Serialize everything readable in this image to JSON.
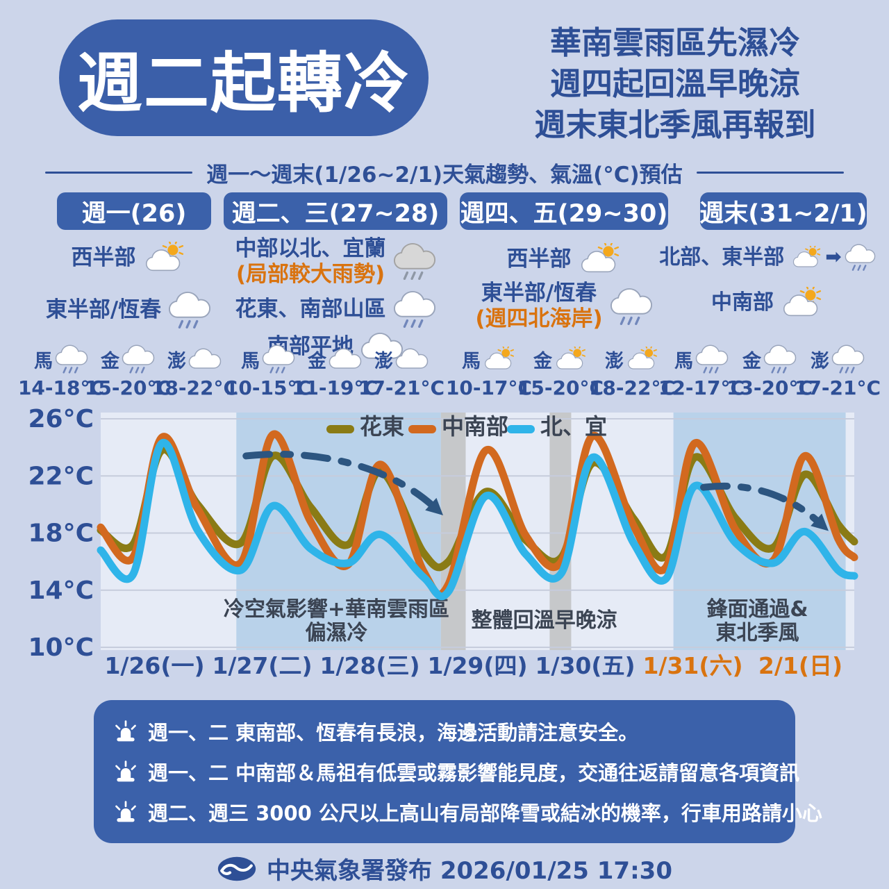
{
  "colors": {
    "page_bg": "#ccd5ea",
    "primary_blue": "#3b61aa",
    "dark_blue_text": "#2e4f96",
    "orange_accent": "#d9730f",
    "chart_bg": "#e6ebf6",
    "band_blue": "#b9d2ea",
    "band_gray": "#c6c8ca",
    "gridline": "#c6ccdc",
    "annotation": "#3b4453",
    "arrow": "#2c5580",
    "sun": "#f4a81d",
    "rain_drop": "#7187bb"
  },
  "header": {
    "title": "週二起轉冷",
    "subtitle_lines": [
      "華南雲雨區先濕冷",
      "週四起回溫早晚涼",
      "週末東北季風再報到"
    ]
  },
  "section": {
    "title": "週一～週末(1/26~2/1)天氣趨勢、氣溫(°C)預估"
  },
  "forecast_columns": [
    {
      "header": "週一(26)",
      "rows": [
        {
          "label": "西半部",
          "icon": "partly-sunny"
        },
        {
          "label": "東半部/恆春",
          "icon": "cloud-rain"
        }
      ],
      "islands": [
        {
          "name": "馬",
          "icon": "cloud-rain",
          "temp": "14-18°C"
        },
        {
          "name": "金",
          "icon": "cloud-rain",
          "temp": "15-20°C"
        },
        {
          "name": "澎",
          "icon": "cloudy",
          "temp": "18-22°C"
        }
      ]
    },
    {
      "header": "週二、三(27~28)",
      "rows": [
        {
          "label": "中部以北、宜蘭",
          "sublabel": "(局部較大雨勢)",
          "icon": "cloud-rain-gray"
        },
        {
          "label": "花東、南部山區",
          "icon": "cloud-rain"
        },
        {
          "label": "南部平地",
          "icon": "cloudy"
        }
      ],
      "islands": [
        {
          "name": "馬",
          "icon": "cloud-rain",
          "temp": "10-15°C"
        },
        {
          "name": "金",
          "icon": "cloudy",
          "temp": "11-19°C"
        },
        {
          "name": "澎",
          "icon": "cloudy",
          "temp": "17-21°C"
        }
      ]
    },
    {
      "header": "週四、五(29~30)",
      "rows": [
        {
          "label": "西半部",
          "icon": "partly-sunny"
        },
        {
          "label": "東半部/恆春",
          "sublabel": "(週四北海岸)",
          "icon": "cloud-rain"
        }
      ],
      "islands": [
        {
          "name": "馬",
          "icon": "partly-sunny",
          "temp": "10-17°C"
        },
        {
          "name": "金",
          "icon": "partly-sunny",
          "temp": "15-20°C"
        },
        {
          "name": "澎",
          "icon": "partly-sunny",
          "temp": "18-22°C"
        }
      ]
    },
    {
      "header": "週末(31~2/1)",
      "rows": [
        {
          "label": "北部、東半部",
          "icon": "partly-sunny-to-rain"
        },
        {
          "label": "中南部",
          "icon": "partly-sunny"
        }
      ],
      "islands": [
        {
          "name": "馬",
          "icon": "cloud-rain",
          "temp": "12-17°C"
        },
        {
          "name": "金",
          "icon": "cloud-rain",
          "temp": "13-20°C"
        },
        {
          "name": "澎",
          "icon": "cloud-rain",
          "temp": "17-21°C"
        }
      ]
    }
  ],
  "chart_data": {
    "type": "line",
    "title": "週一～週末(1/26~2/1)天氣趨勢、氣溫(°C)預估",
    "xlabel": "",
    "ylabel": "氣溫(°C)",
    "ylim": [
      10,
      26
    ],
    "grid": true,
    "legend_position": "top",
    "yticks": [
      {
        "t": 26,
        "label": "26°C"
      },
      {
        "t": 22,
        "label": "22°C"
      },
      {
        "t": 18,
        "label": "18°C"
      },
      {
        "t": 14,
        "label": "14°C"
      },
      {
        "t": 10,
        "label": "10°C"
      }
    ],
    "x_labels": [
      {
        "label": "1/26(一)",
        "weekend": false
      },
      {
        "label": "1/27(二)",
        "weekend": false
      },
      {
        "label": "1/28(三)",
        "weekend": false
      },
      {
        "label": "1/29(四)",
        "weekend": false
      },
      {
        "label": "1/30(五)",
        "weekend": false
      },
      {
        "label": "1/31(六)",
        "weekend": true
      },
      {
        "label": "2/1(日)",
        "weekend": true
      }
    ],
    "series": [
      {
        "name": "花東",
        "color": "#8a7b15",
        "points": [
          [
            0,
            18.2
          ],
          [
            0.3,
            17.2
          ],
          [
            0.57,
            23.8
          ],
          [
            0.9,
            20.0
          ],
          [
            1.3,
            17.3
          ],
          [
            1.6,
            23.4
          ],
          [
            1.95,
            19.8
          ],
          [
            2.3,
            17.2
          ],
          [
            2.6,
            22.3
          ],
          [
            3.0,
            16.6
          ],
          [
            3.23,
            16.0
          ],
          [
            3.58,
            20.9
          ],
          [
            3.95,
            17.5
          ],
          [
            4.28,
            16.3
          ],
          [
            4.57,
            22.9
          ],
          [
            4.95,
            19.0
          ],
          [
            5.25,
            16.4
          ],
          [
            5.52,
            23.3
          ],
          [
            5.9,
            19.0
          ],
          [
            6.25,
            17.0
          ],
          [
            6.54,
            22.1
          ],
          [
            6.85,
            18.6
          ],
          [
            7,
            17.4
          ]
        ]
      },
      {
        "name": "中南部",
        "color": "#d2691f",
        "points": [
          [
            0,
            18.4
          ],
          [
            0.3,
            16.3
          ],
          [
            0.57,
            24.7
          ],
          [
            0.9,
            19.7
          ],
          [
            1.3,
            15.9
          ],
          [
            1.6,
            24.9
          ],
          [
            1.95,
            18.8
          ],
          [
            2.3,
            15.8
          ],
          [
            2.6,
            22.8
          ],
          [
            3.0,
            15.3
          ],
          [
            3.23,
            14.4
          ],
          [
            3.58,
            23.8
          ],
          [
            3.95,
            17.8
          ],
          [
            4.28,
            16.0
          ],
          [
            4.57,
            24.8
          ],
          [
            4.95,
            18.5
          ],
          [
            5.25,
            15.6
          ],
          [
            5.52,
            24.3
          ],
          [
            5.9,
            18.2
          ],
          [
            6.25,
            16.1
          ],
          [
            6.54,
            23.4
          ],
          [
            6.85,
            17.6
          ],
          [
            7,
            16.3
          ]
        ]
      },
      {
        "name": "北、宜",
        "color": "#2fb4e9",
        "points": [
          [
            0,
            16.8
          ],
          [
            0.3,
            15.1
          ],
          [
            0.57,
            24.3
          ],
          [
            0.9,
            18.2
          ],
          [
            1.3,
            15.4
          ],
          [
            1.6,
            19.9
          ],
          [
            1.95,
            16.9
          ],
          [
            2.3,
            15.9
          ],
          [
            2.6,
            17.9
          ],
          [
            3.0,
            14.9
          ],
          [
            3.23,
            13.9
          ],
          [
            3.58,
            20.6
          ],
          [
            3.95,
            16.5
          ],
          [
            4.28,
            15.2
          ],
          [
            4.57,
            23.3
          ],
          [
            4.95,
            17.3
          ],
          [
            5.25,
            14.8
          ],
          [
            5.52,
            21.3
          ],
          [
            5.9,
            17.3
          ],
          [
            6.25,
            15.9
          ],
          [
            6.54,
            18.1
          ],
          [
            6.85,
            15.4
          ],
          [
            7,
            15.0
          ]
        ]
      }
    ],
    "bands": [
      {
        "kind": "highlight",
        "x0": 1.26,
        "x1": 3.16
      },
      {
        "kind": "gray",
        "x0": 3.16,
        "x1": 3.39
      },
      {
        "kind": "gray",
        "x0": 4.17,
        "x1": 4.37
      },
      {
        "kind": "highlight",
        "x0": 5.32,
        "x1": 6.92
      }
    ],
    "annotations": [
      {
        "x": 2.19,
        "y": 12.2,
        "lines": [
          "冷空氣影響+華南雲雨區",
          "偏濕冷"
        ]
      },
      {
        "x": 4.12,
        "y": 11.4,
        "lines": [
          "整體回溫早晚涼"
        ]
      },
      {
        "x": 6.1,
        "y": 12.2,
        "lines": [
          "鋒面通過&",
          "東北季風"
        ]
      }
    ],
    "arrows": [
      {
        "path": [
          [
            1.35,
            23.4
          ],
          [
            1.95,
            23.9
          ],
          [
            2.65,
            22.9
          ],
          [
            3.1,
            19.8
          ]
        ]
      },
      {
        "path": [
          [
            5.6,
            21.2
          ],
          [
            6.05,
            21.6
          ],
          [
            6.4,
            20.6
          ],
          [
            6.68,
            18.7
          ]
        ]
      }
    ],
    "legend": {
      "y": 24,
      "items_x": [
        430,
        548,
        690
      ]
    }
  },
  "notes": {
    "items": [
      "週一、二 東南部、恆春有長浪，海邊活動請注意安全。",
      "週一、二 中南部＆馬祖有低雲或霧影響能見度，交通往返請留意各項資訊",
      "週二、週三 3000 公尺以上高山有局部降雪或結冰的機率，行車用路請小心"
    ]
  },
  "footer": {
    "text": "中央氣象署發布 2026/01/25 17:30"
  }
}
